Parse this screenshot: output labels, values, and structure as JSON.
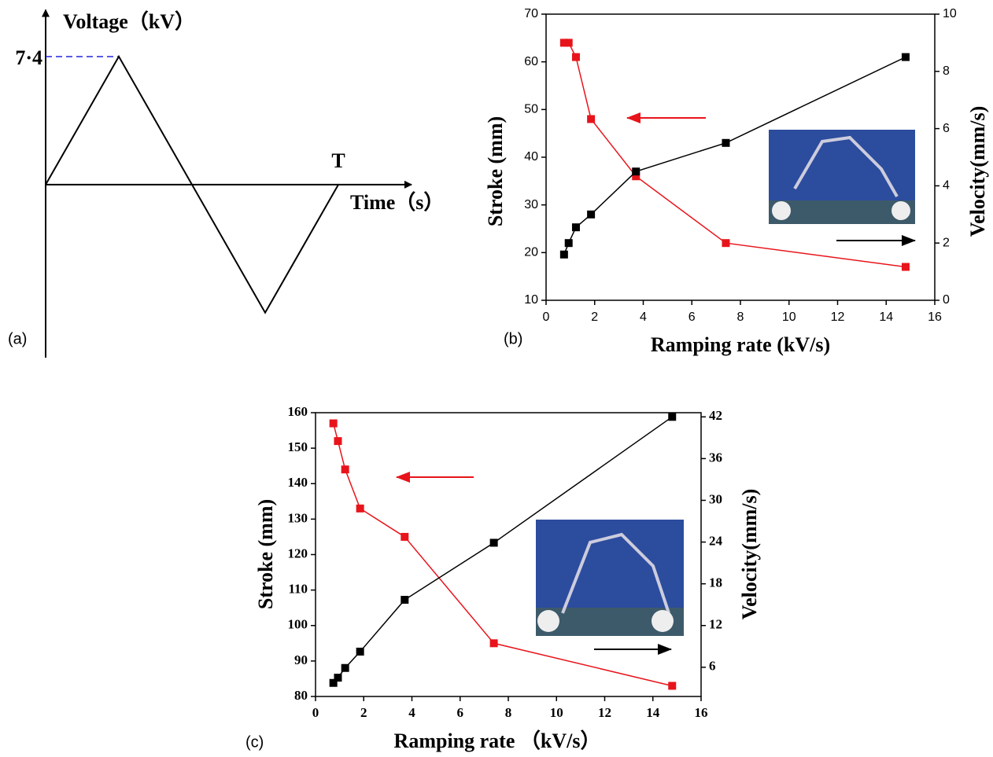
{
  "chart_data": [
    {
      "type": "line",
      "panel": "(a)",
      "ylabel": "Voltage（kV）",
      "xlabel": "Time（s）",
      "x": [
        0,
        0.25,
        0.5,
        0.75,
        1
      ],
      "values": [
        0,
        7.4,
        0,
        -7.4,
        0
      ],
      "color": "#000000",
      "xlim": [
        0,
        1.25
      ],
      "ylim": [
        -10,
        10.1
      ],
      "xticks": [
        {
          "value": 1,
          "label": "T"
        }
      ],
      "yticks": [
        {
          "value": 7.4,
          "label": "7·4"
        }
      ]
    },
    {
      "type": "line",
      "panel": "(b)",
      "xlabel": "Ramping rate (kV/s)",
      "ylabel": "Stroke (mm)",
      "y2label": "Velocity(mm/s)",
      "x": [
        0.74,
        0.93,
        1.23,
        1.85,
        3.7,
        7.4,
        14.8
      ],
      "series": [
        {
          "color": "#e8141b",
          "marker": "square",
          "values": [
            64,
            64,
            61,
            48,
            36,
            22,
            17
          ]
        },
        {
          "color": "#000000",
          "marker": "square",
          "axis": "y2",
          "values": [
            1.6,
            2.0,
            2.55,
            3.0,
            4.5,
            5.5,
            8.5
          ]
        }
      ],
      "xlim": [
        0,
        16
      ],
      "xticks": [
        0,
        2,
        4,
        6,
        8,
        10,
        12,
        14,
        16
      ],
      "ylim": [
        10,
        70
      ],
      "yticks": [
        10,
        20,
        30,
        40,
        50,
        60,
        70
      ],
      "y2lim": [
        0,
        10
      ],
      "y2ticks": [
        0,
        2,
        4,
        6,
        8,
        10
      ]
    },
    {
      "type": "line",
      "panel": "(c)",
      "xlabel": "Ramping rate （kV/s）",
      "ylabel": "Stroke (mm)",
      "y2label": "Velocity(mm/s)",
      "x": [
        0.74,
        0.93,
        1.23,
        1.85,
        3.7,
        7.4,
        14.8
      ],
      "series": [
        {
          "color": "#e8141b",
          "marker": "square",
          "values": [
            157,
            152,
            144,
            133,
            125,
            95,
            83
          ]
        },
        {
          "color": "#000000",
          "marker": "square",
          "axis": "y2",
          "values": [
            3.75,
            4.5,
            5.9,
            8.25,
            15.7,
            23.9,
            42
          ]
        }
      ],
      "xlim": [
        0,
        16
      ],
      "xticks": [
        0,
        2,
        4,
        6,
        8,
        10,
        12,
        14,
        16
      ],
      "ylim": [
        80,
        160
      ],
      "yticks": [
        80,
        90,
        100,
        110,
        120,
        130,
        140,
        150,
        160
      ],
      "y2lim": [
        1.8,
        42.6
      ],
      "y2ticks": [
        6,
        12,
        18,
        24,
        30,
        36,
        42
      ]
    }
  ]
}
